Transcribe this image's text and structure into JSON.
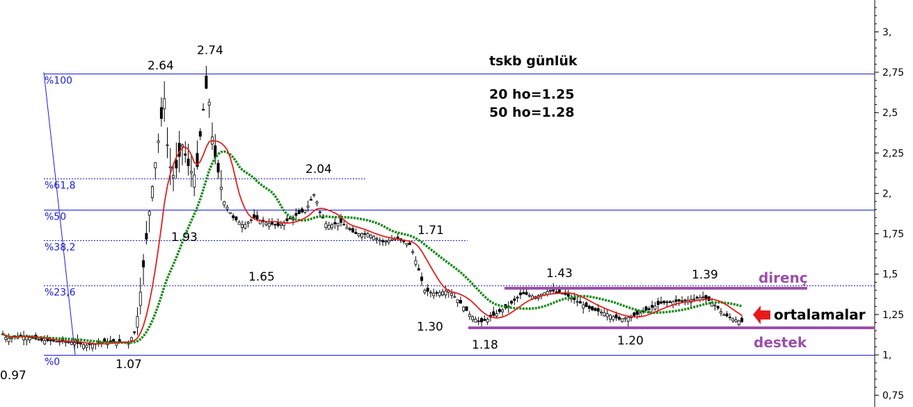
{
  "title": "tskb günlük",
  "ma_labels": [
    "20 ho=1.25",
    "50 ho=1.28"
  ],
  "chart_data": {
    "type": "candlestick",
    "ylim": [
      0.75,
      3.2
    ],
    "y_ticks": [
      {
        "v": 0.75,
        "label": "0,75"
      },
      {
        "v": 1.0,
        "label": "1,"
      },
      {
        "v": 1.25,
        "label": "1,25"
      },
      {
        "v": 1.5,
        "label": "1,5"
      },
      {
        "v": 1.75,
        "label": "1,75"
      },
      {
        "v": 2.0,
        "label": "2,"
      },
      {
        "v": 2.25,
        "label": "2,25"
      },
      {
        "v": 2.5,
        "label": "2,5"
      },
      {
        "v": 2.75,
        "label": "2,75"
      },
      {
        "v": 3.0,
        "label": "3,"
      }
    ],
    "fibonacci": [
      {
        "label": "%100",
        "price": 2.74
      },
      {
        "label": "%61,8",
        "price": 2.09
      },
      {
        "label": "%50",
        "price": 1.9
      },
      {
        "label": "%38,2",
        "price": 1.71
      },
      {
        "label": "%23,6",
        "price": 1.43
      },
      {
        "label": "%0",
        "price": 1.0
      }
    ],
    "price_labels": [
      "0.97",
      "1.07",
      "2.64",
      "2.74",
      "1.93",
      "1.65",
      "2.04",
      "1.71",
      "1.30",
      "1.18",
      "1.43",
      "1.20",
      "1.39"
    ],
    "support_label": "destek",
    "support_price": 1.18,
    "resistance_label": "direnç",
    "resistance_price": 1.43,
    "ma_annotation": "ortalamalar",
    "series": [
      {
        "name": "20 ho",
        "color": "#e0201c"
      },
      {
        "name": "50 ho",
        "color": "#1a8a1a"
      }
    ],
    "colors": {
      "fib": "#1a1ad8",
      "zone": "#9b4fa8",
      "arrow": "#e81a1a",
      "candle": "#000000"
    }
  }
}
